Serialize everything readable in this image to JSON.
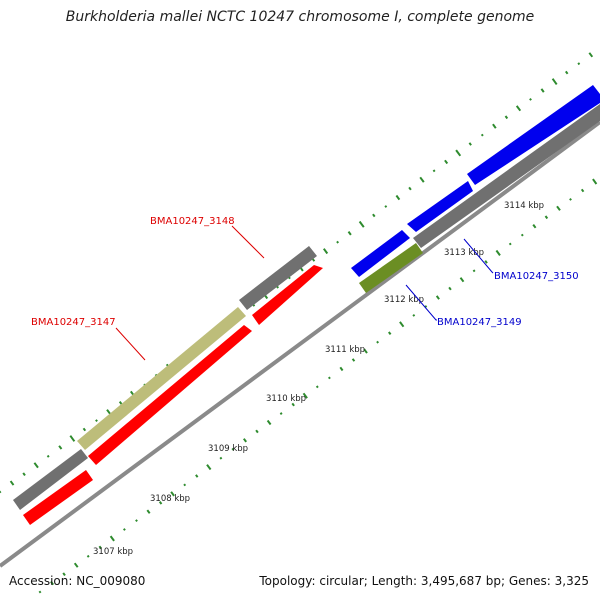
{
  "title": "Burkholderia mallei NCTC 10247 chromosome I, complete genome",
  "footer": {
    "accession": "Accession: NC_009080",
    "stats": "Topology: circular; Length: 3,495,687 bp; Genes: 3,325"
  },
  "scale_labels": [
    "3107 kbp",
    "3108 kbp",
    "3109 kbp",
    "3110 kbp",
    "3111 kbp",
    "3112 kbp",
    "3113 kbp",
    "3114 kbp"
  ],
  "gene_labels": {
    "g3147": "BMA10247_3147",
    "g3148": "BMA10247_3148",
    "g3149": "BMA10247_3149",
    "g3150": "BMA10247_3150"
  },
  "colors": {
    "background": "#ffffff",
    "backbone": "#8a8a8a",
    "gene_gray": "#707070",
    "gene_red": "#ff0000",
    "gene_khaki": "#bdbd7a",
    "gene_blue": "#0000ee",
    "gene_olive": "#6b8e23",
    "tick_green": "#2e8b2e",
    "label_red": "#dd0000",
    "label_blue": "#0000cc"
  }
}
